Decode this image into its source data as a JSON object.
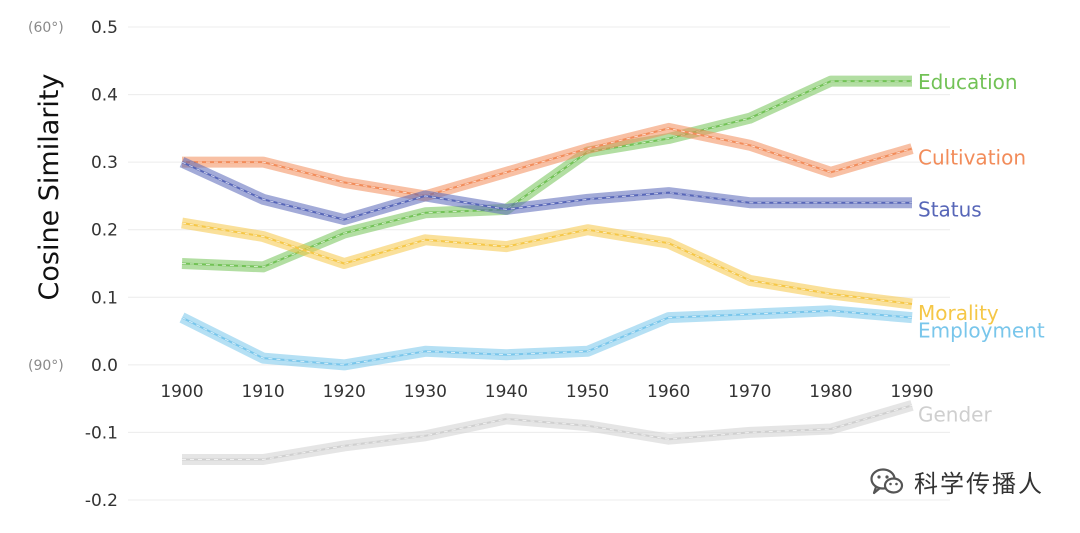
{
  "chart_data": {
    "type": "line",
    "title": "",
    "xlabel": "",
    "ylabel": "Cosine Similarity",
    "x": [
      1900,
      1910,
      1920,
      1930,
      1940,
      1950,
      1960,
      1970,
      1980,
      1990
    ],
    "x_tick_labels": [
      "1900",
      "1910",
      "1920",
      "1930",
      "1940",
      "1950",
      "1960",
      "1970",
      "1980",
      "1990"
    ],
    "ylim": [
      -0.2,
      0.5
    ],
    "y_ticks": [
      0.5,
      0.4,
      0.3,
      0.2,
      0.1,
      0.0,
      -0.1,
      -0.2
    ],
    "y_tick_labels": [
      "0.5",
      "0.4",
      "0.3",
      "0.2",
      "0.1",
      "0.0",
      "-0.1",
      "-0.2"
    ],
    "angle_annotations": [
      {
        "label": "(60°)",
        "y": 0.5
      },
      {
        "label": "(90°)",
        "y": 0.0
      }
    ],
    "grid": true,
    "legend": "direct labels at right end of each line",
    "series": [
      {
        "name": "Education",
        "color": "#72c256",
        "values": [
          0.15,
          0.145,
          0.195,
          0.225,
          0.23,
          0.315,
          0.335,
          0.365,
          0.42,
          0.42
        ]
      },
      {
        "name": "Cultivation",
        "color": "#f28c5a",
        "values": [
          0.3,
          0.3,
          0.27,
          0.25,
          0.285,
          0.32,
          0.35,
          0.325,
          0.285,
          0.32
        ]
      },
      {
        "name": "Status",
        "color": "#5766b8",
        "values": [
          0.3,
          0.245,
          0.215,
          0.25,
          0.23,
          0.245,
          0.255,
          0.24,
          0.24,
          0.24
        ]
      },
      {
        "name": "Morality",
        "color": "#f5c747",
        "values": [
          0.21,
          0.19,
          0.15,
          0.185,
          0.175,
          0.2,
          0.18,
          0.125,
          0.105,
          0.09
        ]
      },
      {
        "name": "Employment",
        "color": "#79c6eb",
        "values": [
          0.07,
          0.01,
          0.0,
          0.02,
          0.015,
          0.02,
          0.07,
          0.075,
          0.08,
          0.07
        ]
      },
      {
        "name": "Gender",
        "color": "#cfcfcf",
        "values": [
          -0.14,
          -0.14,
          -0.12,
          -0.105,
          -0.08,
          -0.09,
          -0.11,
          -0.1,
          -0.095,
          -0.06
        ]
      }
    ]
  },
  "watermark": {
    "text": "科学传播人",
    "icon": "wechat-logo-icon"
  }
}
